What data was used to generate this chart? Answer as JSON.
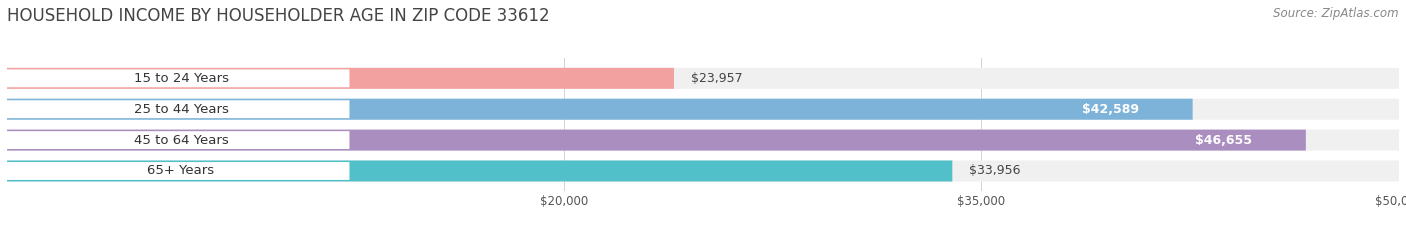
{
  "title": "HOUSEHOLD INCOME BY HOUSEHOLDER AGE IN ZIP CODE 33612",
  "source": "Source: ZipAtlas.com",
  "categories": [
    "15 to 24 Years",
    "25 to 44 Years",
    "45 to 64 Years",
    "65+ Years"
  ],
  "values": [
    23957,
    42589,
    46655,
    33956
  ],
  "bar_colors": [
    "#f2a0a0",
    "#7db3d8",
    "#aa8ec0",
    "#52c0c8"
  ],
  "label_pill_colors": [
    "#f2a0a0",
    "#7db3d8",
    "#aa8ec0",
    "#52c0c8"
  ],
  "value_labels": [
    "$23,957",
    "$42,589",
    "$46,655",
    "$33,956"
  ],
  "value_inside": [
    false,
    true,
    true,
    false
  ],
  "xlim_min": 0,
  "xlim_max": 50000,
  "xticks": [
    20000,
    35000,
    50000
  ],
  "xtick_labels": [
    "$20,000",
    "$35,000",
    "$50,000"
  ],
  "background_color": "#ffffff",
  "bar_bg_color": "#f0f0f0",
  "title_fontsize": 12,
  "source_fontsize": 8.5,
  "bar_height": 0.68,
  "bar_label_fontsize": 9,
  "value_label_fontsize": 9,
  "cat_label_fontsize": 9.5
}
